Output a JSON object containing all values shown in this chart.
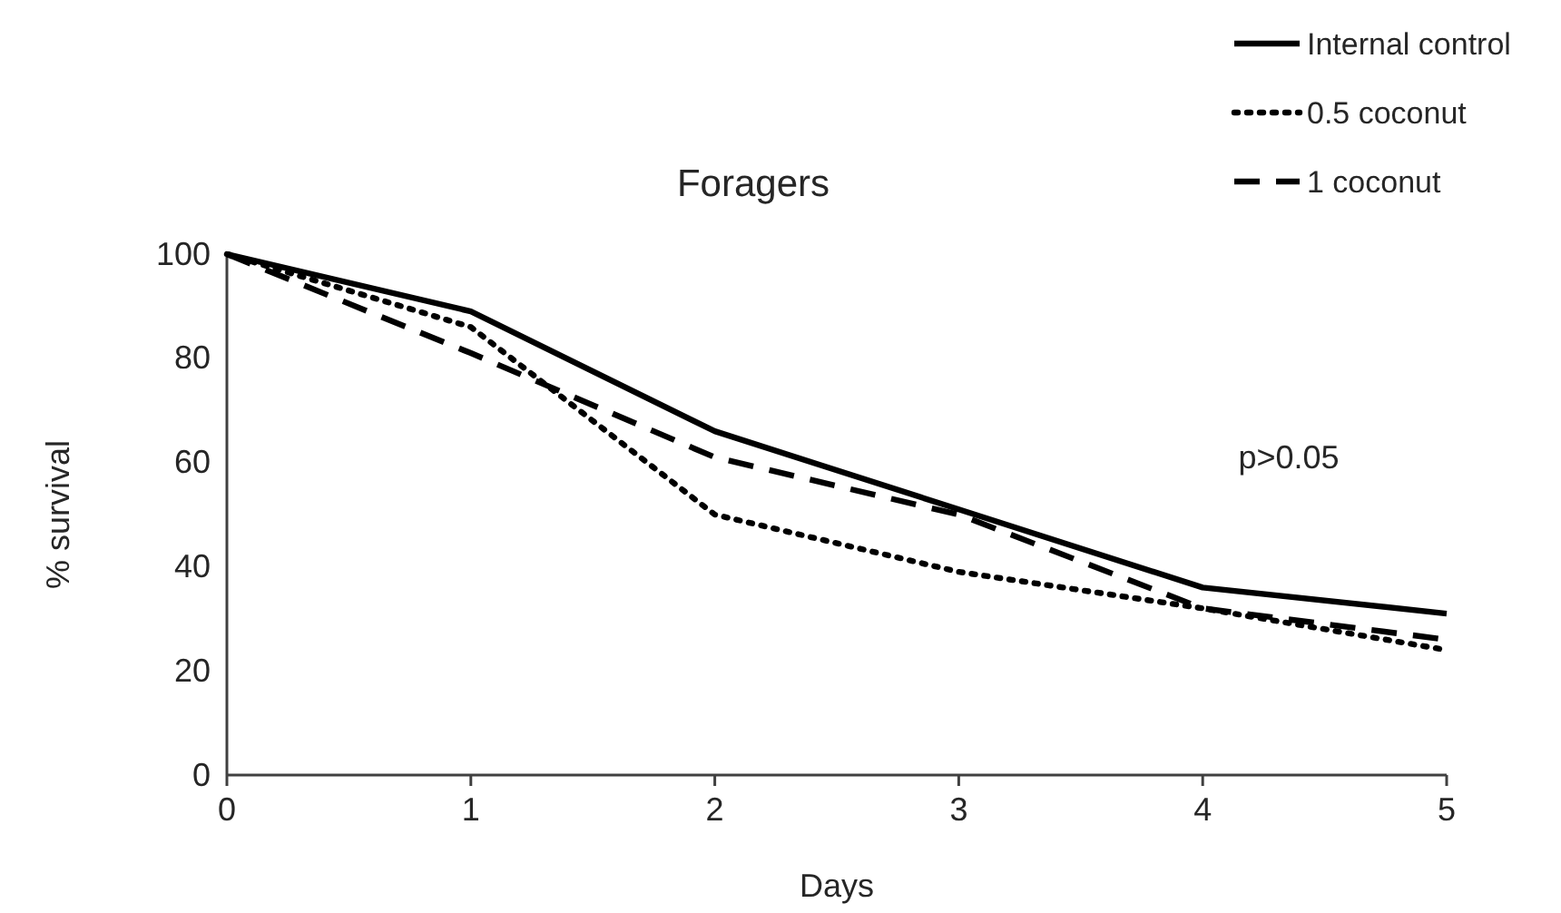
{
  "chart_data": {
    "type": "line",
    "title": "Foragers",
    "xlabel": "Days",
    "ylabel": "% survival",
    "x": [
      0,
      1,
      2,
      3,
      4,
      5
    ],
    "series": [
      {
        "name": "Internal control",
        "color": "#000000",
        "line_style": "solid",
        "values": [
          100,
          89,
          66,
          51,
          36,
          31
        ]
      },
      {
        "name": "0.5 coconut",
        "color": "#000000",
        "line_style": "dotted",
        "values": [
          100,
          86,
          50,
          39,
          32,
          24
        ]
      },
      {
        "name": "1 coconut",
        "color": "#000000",
        "line_style": "dashed",
        "values": [
          100,
          81,
          61,
          50,
          32,
          26
        ]
      }
    ],
    "xlim": [
      0,
      5
    ],
    "xticks": [
      0,
      1,
      2,
      3,
      4,
      5
    ],
    "ylim": [
      0,
      100
    ],
    "yticks": [
      0,
      20,
      40,
      60,
      80,
      100
    ],
    "grid": false,
    "legend": "top right",
    "marker": "none",
    "annotations": [
      "p>0.05"
    ]
  }
}
